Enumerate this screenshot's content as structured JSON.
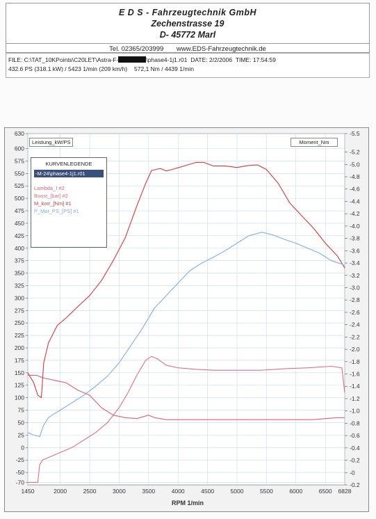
{
  "header": {
    "company": "E D S - Fahrzeugtechnik GmbH",
    "street": "Zechenstrasse 19",
    "city": "D- 45772 Marl",
    "phone": "Tel. 02365/203999",
    "website": "www.EDS-Fahrzeugtechnik.de"
  },
  "info": {
    "file_prefix": "FILE: C:\\TAT_10KPoints\\C20LET\\Astra-F-",
    "file_suffix": "\\phase4-1j1.r01",
    "date": "DATE: 2/2/2006",
    "time": "TIME: 17:54:59",
    "power": "432.6 PS  (318.1 kW) / 5423 1/min (209 km/h)",
    "torque": "572,1 Nm / 4439 1/min"
  },
  "legend": {
    "title": "KURVENLEGENDE",
    "selected": "-M-24\\phase4-1j1.r01",
    "items": [
      {
        "label": "Lambda_I #2",
        "color": "#e06070"
      },
      {
        "label": "Boost_[bar] #2",
        "color": "#e07080"
      },
      {
        "label": "M_korr_[Nm] #1",
        "color": "#d83838"
      },
      {
        "label": "P_Mot_PS_[PS] #1",
        "color": "#7fb0e0"
      }
    ]
  },
  "chart_data": {
    "type": "line",
    "xlabel": "RPM  1/min",
    "y_left_label": "Leistung_kW/PS",
    "y_right_label": "Moment_Nm",
    "xlim": [
      1450,
      6828
    ],
    "x_ticks": [
      "1450",
      "2000",
      "2500",
      "3000",
      "3500",
      "4000",
      "4500",
      "5000",
      "5500",
      "6000",
      "6500",
      "6828"
    ],
    "ylim_left": [
      -75,
      630
    ],
    "y_left_ticks": [
      "630",
      "600",
      "575",
      "550",
      "525",
      "500",
      "475",
      "450",
      "425",
      "400",
      "375",
      "350",
      "325",
      "300",
      "275",
      "250",
      "225",
      "200",
      "175",
      "150",
      "125",
      "100",
      "75",
      "50",
      "25",
      "0",
      "-25",
      "-50",
      "-70"
    ],
    "ylim_right": [
      -0.2,
      5.5
    ],
    "y_right_ticks": [
      "5.5",
      "5.2",
      "5.0",
      "4.8",
      "4.6",
      "4.4",
      "4.2",
      "4.0",
      "3.8",
      "3.6",
      "3.4",
      "3.2",
      "3.0",
      "2.8",
      "2.6",
      "2.4",
      "2.2",
      "2.0",
      "1.8",
      "1.6",
      "1.4",
      "1.2",
      "1.0",
      "0.8",
      "0.6",
      "0.4",
      "0.2",
      "0",
      "-0.2"
    ],
    "grid": true,
    "series": [
      {
        "name": "M_korr_[Nm] #1",
        "axis": "left",
        "color": "#d83838",
        "x": [
          1450,
          1550,
          1620,
          1680,
          1720,
          1800,
          1950,
          2100,
          2300,
          2500,
          2700,
          2900,
          3100,
          3300,
          3450,
          3550,
          3700,
          3800,
          3900,
          4100,
          4300,
          4439,
          4600,
          4800,
          5000,
          5200,
          5350,
          5500,
          5700,
          5900,
          6100,
          6300,
          6500,
          6700,
          6780,
          6828
        ],
        "y": [
          150,
          130,
          105,
          100,
          170,
          210,
          245,
          260,
          283,
          305,
          335,
          375,
          420,
          485,
          530,
          556,
          560,
          555,
          558,
          565,
          572,
          572,
          565,
          565,
          562,
          566,
          567,
          558,
          530,
          490,
          465,
          440,
          410,
          385,
          370,
          360
        ]
      },
      {
        "name": "P_Mot_PS_[PS] #1",
        "axis": "left",
        "color": "#7fb0e0",
        "x": [
          1450,
          1550,
          1650,
          1720,
          1800,
          1900,
          2000,
          2200,
          2400,
          2600,
          2800,
          3000,
          3200,
          3400,
          3600,
          3800,
          4000,
          4200,
          4400,
          4600,
          4800,
          5000,
          5200,
          5423,
          5600,
          5800,
          6000,
          6200,
          6400,
          6600,
          6780,
          6828
        ],
        "y": [
          30,
          25,
          22,
          45,
          60,
          68,
          75,
          90,
          105,
          123,
          143,
          170,
          205,
          240,
          280,
          305,
          330,
          355,
          370,
          382,
          395,
          410,
          425,
          432,
          427,
          418,
          410,
          400,
          390,
          375,
          368,
          365
        ]
      },
      {
        "name": "Boost_[bar] #2",
        "axis": "left",
        "color": "#e07080",
        "x": [
          1450,
          1550,
          1620,
          1650,
          1700,
          1800,
          2000,
          2200,
          2400,
          2600,
          2800,
          3000,
          3150,
          3300,
          3450,
          3550,
          3650,
          3800,
          4000,
          4300,
          4600,
          5000,
          5400,
          5800,
          6200,
          6600,
          6780,
          6828
        ],
        "y": [
          -70,
          -70,
          -70,
          -35,
          -25,
          -20,
          -10,
          0,
          15,
          30,
          50,
          80,
          110,
          145,
          175,
          183,
          178,
          165,
          160,
          157,
          155,
          155,
          155,
          158,
          160,
          163,
          160,
          110
        ]
      },
      {
        "name": "Lambda_I #2",
        "axis": "left",
        "color": "#e06070",
        "x": [
          1450,
          1600,
          1700,
          1900,
          2100,
          2300,
          2500,
          2700,
          2900,
          3100,
          3300,
          3500,
          3600,
          3800,
          4100,
          4500,
          5000,
          5500,
          6000,
          6300,
          6500,
          6700,
          6828
        ],
        "y": [
          145,
          145,
          140,
          135,
          130,
          115,
          105,
          80,
          65,
          60,
          58,
          65,
          60,
          56,
          56,
          56,
          56,
          56,
          56,
          56,
          58,
          60,
          60
        ]
      }
    ]
  }
}
